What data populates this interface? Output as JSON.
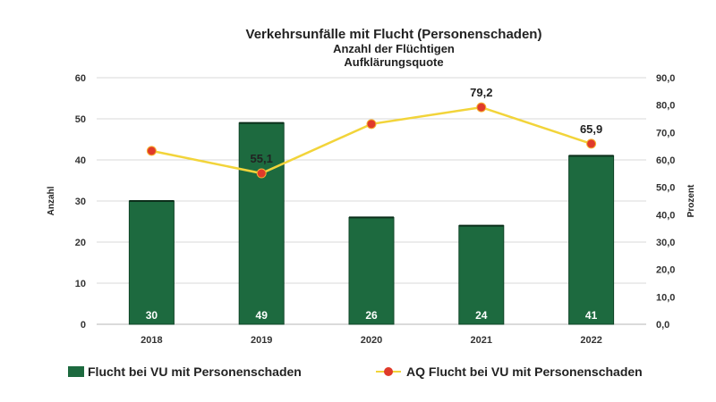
{
  "chart_data": {
    "type": "bar",
    "title": "Verkehrsunfälle mit Flucht (Personenschaden)",
    "subtitle_lines": [
      "Anzahl der Flüchtigen",
      "Aufklärungsquote"
    ],
    "categories": [
      "2018",
      "2019",
      "2020",
      "2021",
      "2022"
    ],
    "ylabel": "Anzahl",
    "y2label": "Prozent",
    "ylim": [
      0,
      60
    ],
    "y2lim": [
      0,
      90
    ],
    "y_ticks": [
      "0",
      "10",
      "20",
      "30",
      "40",
      "50",
      "60"
    ],
    "y2_ticks": [
      "0,0",
      "10,0",
      "20,0",
      "30,0",
      "40,0",
      "50,0",
      "60,0",
      "70,0",
      "80,0",
      "90,0"
    ],
    "grid": true,
    "legend_position": "bottom",
    "series": [
      {
        "name": "Flucht bei VU mit Personenschaden",
        "kind": "bar",
        "axis": "left",
        "color": "#1d6a3f",
        "values": [
          30,
          49,
          26,
          24,
          41
        ],
        "labels": [
          "30",
          "49",
          "26",
          "24",
          "41"
        ]
      },
      {
        "name": "AQ Flucht bei VU mit Personenschaden",
        "kind": "line",
        "axis": "right",
        "color": "#f2d43a",
        "marker_color": "#e03a2a",
        "values": [
          63.3,
          55.1,
          73.1,
          79.2,
          65.9
        ],
        "labels": [
          "",
          "55,1",
          "",
          "79,2",
          "65,9"
        ]
      }
    ]
  }
}
